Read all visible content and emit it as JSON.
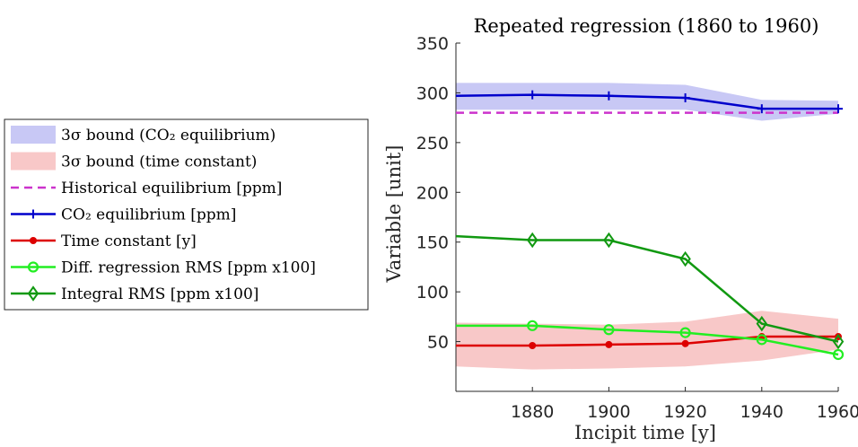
{
  "chart_data": {
    "type": "line",
    "title": "Repeated regression (1860 to 1960)",
    "xlabel": "Incipit time [y]",
    "ylabel": "Variable [unit]",
    "xlim": [
      1860,
      1960
    ],
    "ylim": [
      0,
      350
    ],
    "xticks": [
      "1880",
      "1900",
      "1920",
      "1940",
      "1960"
    ],
    "yticks": [
      "50",
      "100",
      "150",
      "200",
      "250",
      "300",
      "350"
    ],
    "grid": false,
    "legend_position": "left, outside plot",
    "x": [
      1860,
      1880,
      1900,
      1920,
      1940,
      1960
    ],
    "bands": [
      {
        "name": "3σ bound (CO₂ equilibrium)",
        "color": "#c8c8f5",
        "upper": [
          310,
          310,
          310,
          308,
          293,
          292
        ],
        "lower": [
          283,
          283,
          283,
          283,
          272,
          279
        ]
      },
      {
        "name": "3σ bound (time constant)",
        "color": "#f8c8c8",
        "upper": [
          69,
          68,
          67,
          70,
          81,
          73
        ],
        "lower": [
          25,
          22,
          23,
          25,
          31,
          42
        ]
      }
    ],
    "series": [
      {
        "name": "Historical equilibrium [ppm]",
        "color": "#cc33cc",
        "style": "dashed",
        "marker": "none",
        "values": [
          280,
          280,
          280,
          280,
          280,
          280
        ]
      },
      {
        "name": "CO₂ equilibrium [ppm]",
        "color": "#0000cc",
        "style": "solid",
        "marker": "plus",
        "values": [
          297,
          298,
          297,
          295,
          284,
          284
        ]
      },
      {
        "name": "Time constant [y]",
        "color": "#dd0000",
        "style": "solid",
        "marker": "dot",
        "values": [
          46,
          46,
          47,
          48,
          55,
          55
        ]
      },
      {
        "name": "Diff. regression RMS [ppm x100]",
        "color": "#22ee22",
        "style": "solid",
        "marker": "circle",
        "values": [
          66,
          66,
          62,
          59,
          52,
          37
        ]
      },
      {
        "name": "Integral RMS [ppm x100]",
        "color": "#119911",
        "style": "solid",
        "marker": "diamond",
        "values": [
          156,
          152,
          152,
          133,
          68,
          50
        ]
      }
    ],
    "legend": [
      "3σ bound (CO₂ equilibrium)",
      "3σ bound (time constant)",
      "Historical equilibrium [ppm]",
      "CO₂ equilibrium [ppm]",
      "Time constant [y]",
      "Diff. regression RMS [ppm x100]",
      "Integral RMS [ppm x100]"
    ]
  }
}
